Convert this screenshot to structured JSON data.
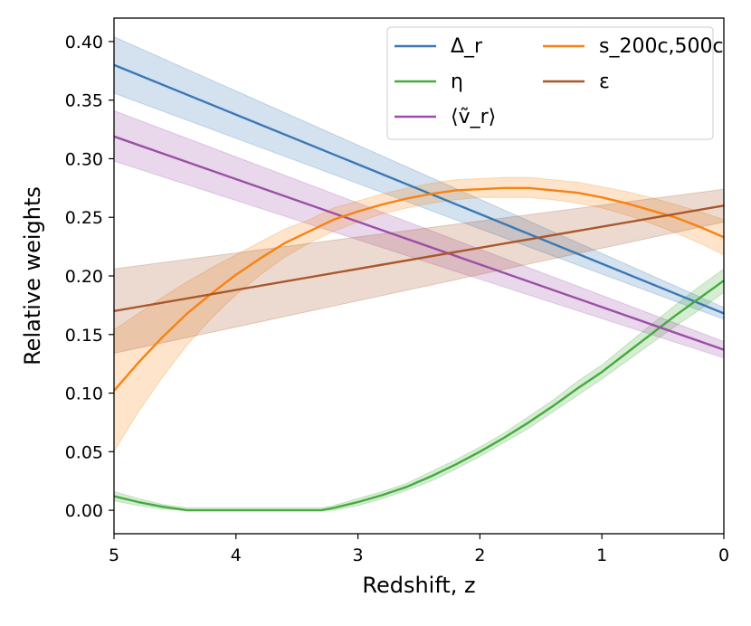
{
  "chart_data": {
    "type": "line",
    "xlabel": "Redshift, z",
    "ylabel": "Relative weights",
    "xlim": [
      5,
      0
    ],
    "ylim": [
      -0.02,
      0.42
    ],
    "xticks": [
      "5",
      "4",
      "3",
      "2",
      "1",
      "0"
    ],
    "yticks": [
      "0.00",
      "0.05",
      "0.10",
      "0.15",
      "0.20",
      "0.25",
      "0.30",
      "0.35",
      "0.40"
    ],
    "grid": false,
    "legend_position": "top-right",
    "series": [
      {
        "name": "Δ_r",
        "color": "#3a78b5",
        "x": [
          5,
          0
        ],
        "y": [
          0.38,
          0.168
        ],
        "lower": [
          0.356,
          0.163
        ],
        "upper": [
          0.404,
          0.173
        ]
      },
      {
        "name": "η",
        "color": "#44ab3c",
        "x": [
          5,
          4.8,
          4.6,
          4.4,
          4.2,
          4.0,
          3.8,
          3.6,
          3.4,
          3.3,
          3.2,
          3.0,
          2.8,
          2.6,
          2.4,
          2.2,
          2.0,
          1.8,
          1.6,
          1.4,
          1.2,
          1.0,
          0.8,
          0.6,
          0.4,
          0.2,
          0.0
        ],
        "y": [
          0.012,
          0.007,
          0.003,
          0.0,
          0.0,
          0.0,
          0.0,
          0.0,
          0.0,
          0.0,
          0.002,
          0.007,
          0.013,
          0.02,
          0.029,
          0.039,
          0.05,
          0.062,
          0.075,
          0.089,
          0.104,
          0.118,
          0.134,
          0.15,
          0.166,
          0.181,
          0.196
        ],
        "lower": [
          0.008,
          0.004,
          0.001,
          0.0,
          0.0,
          0.0,
          0.0,
          0.0,
          0.0,
          0.0,
          0.0,
          0.004,
          0.01,
          0.017,
          0.025,
          0.035,
          0.046,
          0.058,
          0.07,
          0.084,
          0.098,
          0.112,
          0.127,
          0.142,
          0.157,
          0.171,
          0.186
        ],
        "upper": [
          0.016,
          0.01,
          0.005,
          0.002,
          0.002,
          0.002,
          0.002,
          0.002,
          0.002,
          0.002,
          0.004,
          0.01,
          0.016,
          0.023,
          0.033,
          0.043,
          0.054,
          0.066,
          0.08,
          0.094,
          0.11,
          0.124,
          0.141,
          0.158,
          0.175,
          0.191,
          0.206
        ]
      },
      {
        "name": "⟨ṽ_r⟩",
        "color": "#9b4fa6",
        "x": [
          5,
          0
        ],
        "y": [
          0.319,
          0.137
        ],
        "lower": [
          0.298,
          0.13
        ],
        "upper": [
          0.341,
          0.144
        ]
      },
      {
        "name": "s_200c,500c",
        "color": "#f88212",
        "x": [
          5,
          4.8,
          4.6,
          4.4,
          4.2,
          4.0,
          3.8,
          3.6,
          3.4,
          3.2,
          3.0,
          2.8,
          2.6,
          2.4,
          2.2,
          2.0,
          1.8,
          1.6,
          1.4,
          1.2,
          1.0,
          0.8,
          0.6,
          0.4,
          0.2,
          0.0
        ],
        "y": [
          0.102,
          0.126,
          0.148,
          0.168,
          0.185,
          0.201,
          0.215,
          0.228,
          0.238,
          0.248,
          0.255,
          0.261,
          0.266,
          0.27,
          0.273,
          0.274,
          0.275,
          0.275,
          0.273,
          0.271,
          0.267,
          0.262,
          0.256,
          0.25,
          0.242,
          0.233
        ],
        "lower": [
          0.05,
          0.084,
          0.114,
          0.141,
          0.164,
          0.184,
          0.201,
          0.216,
          0.228,
          0.238,
          0.246,
          0.253,
          0.258,
          0.262,
          0.265,
          0.267,
          0.267,
          0.267,
          0.265,
          0.262,
          0.258,
          0.252,
          0.245,
          0.237,
          0.228,
          0.218
        ],
        "upper": [
          0.154,
          0.168,
          0.182,
          0.195,
          0.207,
          0.218,
          0.229,
          0.24,
          0.248,
          0.258,
          0.264,
          0.27,
          0.275,
          0.279,
          0.282,
          0.283,
          0.284,
          0.284,
          0.282,
          0.28,
          0.276,
          0.272,
          0.267,
          0.261,
          0.255,
          0.248
        ]
      },
      {
        "name": "ε",
        "color": "#a9572b",
        "x": [
          5,
          0
        ],
        "y": [
          0.17,
          0.26
        ],
        "lower": [
          0.134,
          0.246
        ],
        "upper": [
          0.206,
          0.274
        ]
      }
    ]
  }
}
